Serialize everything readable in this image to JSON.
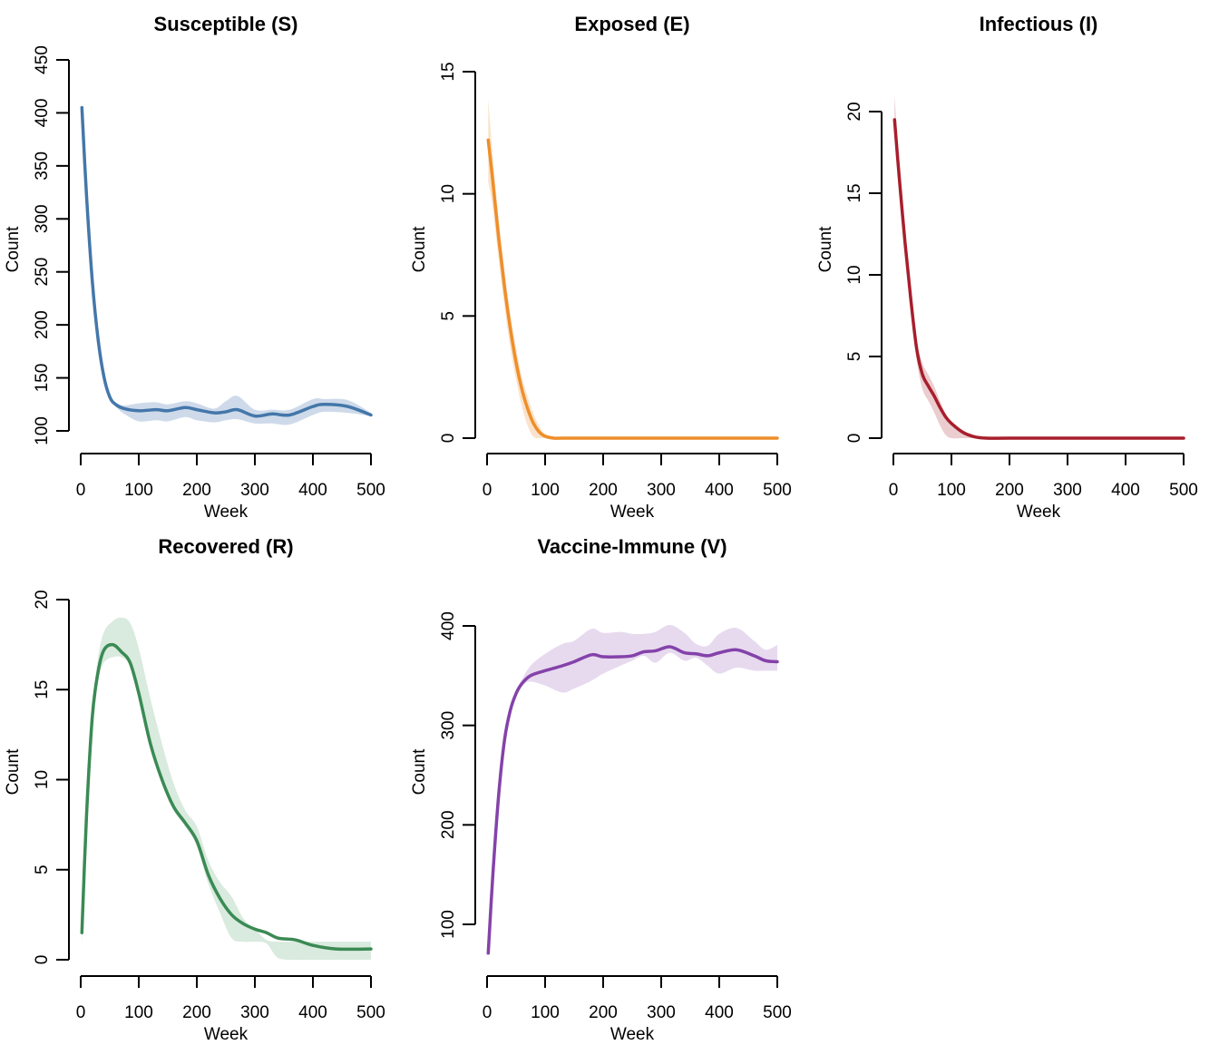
{
  "chart_data": [
    {
      "type": "line",
      "title": "Susceptible (S)",
      "xlabel": "Week",
      "ylabel": "Count",
      "xlim": [
        0,
        500
      ],
      "ylim": [
        100,
        450
      ],
      "xticks": [
        0,
        100,
        200,
        300,
        400,
        500
      ],
      "yticks": [
        100,
        150,
        200,
        250,
        300,
        350,
        400,
        450
      ],
      "grid": false,
      "color": "#4477AA",
      "band_color": "#C5D4E6",
      "series": [
        {
          "name": "S mean",
          "x": [
            2,
            10,
            20,
            30,
            40,
            50,
            60,
            75,
            100,
            130,
            150,
            180,
            200,
            230,
            250,
            270,
            300,
            330,
            360,
            400,
            420,
            460,
            500
          ],
          "y": [
            405,
            322,
            241,
            186,
            151,
            132,
            125,
            121,
            119,
            120,
            119,
            122,
            120,
            117,
            118,
            120,
            114,
            116,
            115,
            123,
            125,
            123,
            115
          ],
          "lower": [
            405,
            322,
            241,
            186,
            151,
            131,
            123,
            116,
            109,
            110,
            109,
            113,
            110,
            108,
            110,
            111,
            107,
            107,
            106,
            115,
            118,
            117,
            114
          ],
          "upper": [
            405,
            322,
            241,
            186,
            151,
            133,
            127,
            124,
            126,
            127,
            125,
            128,
            126,
            121,
            128,
            133,
            120,
            120,
            120,
            130,
            130,
            129,
            117
          ]
        }
      ]
    },
    {
      "type": "line",
      "title": "Exposed (E)",
      "xlabel": "Week",
      "ylabel": "Count",
      "xlim": [
        0,
        500
      ],
      "ylim": [
        0,
        15
      ],
      "xticks": [
        0,
        100,
        200,
        300,
        400,
        500
      ],
      "yticks": [
        0,
        5,
        10,
        15
      ],
      "grid": false,
      "color": "#EE8E2A",
      "band_color": "#F9DEC3",
      "series": [
        {
          "name": "E mean",
          "x": [
            2,
            10,
            20,
            30,
            40,
            50,
            60,
            70,
            80,
            90,
            100,
            115,
            130,
            200,
            300,
            400,
            500
          ],
          "y": [
            12.2,
            10.5,
            8.2,
            6.2,
            4.5,
            3.1,
            2.0,
            1.2,
            0.6,
            0.25,
            0.08,
            0,
            0,
            0,
            0,
            0,
            0
          ],
          "lower": [
            10.5,
            9.4,
            7.3,
            5.4,
            3.7,
            2.4,
            1.3,
            0.5,
            0.05,
            0,
            0,
            0,
            0,
            0,
            0,
            0,
            0
          ],
          "upper": [
            13.9,
            11.5,
            9.0,
            6.9,
            5.1,
            3.7,
            2.5,
            1.7,
            1.0,
            0.5,
            0.15,
            0,
            0,
            0,
            0,
            0,
            0
          ]
        }
      ]
    },
    {
      "type": "line",
      "title": "Infectious (I)",
      "xlabel": "Week",
      "ylabel": "Count",
      "xlim": [
        0,
        500
      ],
      "ylim": [
        0,
        20
      ],
      "xticks": [
        0,
        100,
        200,
        300,
        400,
        500
      ],
      "yticks": [
        0,
        5,
        10,
        15,
        20
      ],
      "grid": false,
      "color": "#A81E2C",
      "band_color": "#E8C4C8",
      "series": [
        {
          "name": "I mean",
          "x": [
            2,
            10,
            20,
            30,
            40,
            50,
            60,
            70,
            80,
            90,
            100,
            120,
            140,
            160,
            200,
            300,
            400,
            500
          ],
          "y": [
            19.5,
            16,
            12,
            8.5,
            5.5,
            3.9,
            3.2,
            2.6,
            1.9,
            1.3,
            0.9,
            0.35,
            0.08,
            0,
            0,
            0,
            0,
            0
          ],
          "lower": [
            18.5,
            15.2,
            11.5,
            8.0,
            4.8,
            3.0,
            2.3,
            1.6,
            0.8,
            0.2,
            0,
            0,
            0,
            0,
            0,
            0,
            0,
            0
          ],
          "upper": [
            21.0,
            16.8,
            12.6,
            9.0,
            6.0,
            4.6,
            3.9,
            3.2,
            2.3,
            1.5,
            1.0,
            0.4,
            0.1,
            0,
            0,
            0,
            0,
            0
          ]
        }
      ]
    },
    {
      "type": "line",
      "title": "Recovered (R)",
      "xlabel": "Week",
      "ylabel": "Count",
      "xlim": [
        0,
        500
      ],
      "ylim": [
        0,
        20
      ],
      "xticks": [
        0,
        100,
        200,
        300,
        400,
        500
      ],
      "yticks": [
        0,
        5,
        10,
        15,
        20
      ],
      "grid": false,
      "color": "#3A8A54",
      "band_color": "#D2E6D8",
      "series": [
        {
          "name": "R mean",
          "x": [
            2,
            10,
            20,
            30,
            40,
            55,
            70,
            85,
            100,
            120,
            140,
            160,
            180,
            200,
            220,
            240,
            260,
            280,
            300,
            320,
            340,
            370,
            400,
            440,
            500
          ],
          "y": [
            1.5,
            8,
            13.5,
            16,
            17.2,
            17.5,
            17.1,
            16.5,
            14.8,
            12,
            10,
            8.5,
            7.6,
            6.6,
            4.7,
            3.4,
            2.5,
            2.0,
            1.7,
            1.5,
            1.2,
            1.1,
            0.8,
            0.6,
            0.6
          ],
          "lower": [
            0.8,
            7.5,
            13.0,
            15.5,
            16.5,
            16.8,
            16.8,
            16.3,
            14.6,
            11.8,
            9.8,
            8.3,
            7.4,
            6.3,
            4.2,
            2.6,
            1.2,
            1.0,
            1.0,
            0.9,
            0.1,
            0,
            0,
            0,
            0
          ],
          "upper": [
            2.0,
            8.5,
            14.0,
            16.8,
            18.2,
            18.8,
            19.0,
            18.7,
            17.3,
            14.5,
            12,
            9.8,
            8.3,
            7.4,
            5.5,
            4.3,
            3.5,
            2.3,
            1.7,
            1.1,
            1.0,
            1.0,
            1.0,
            1.0,
            1.0
          ]
        }
      ]
    },
    {
      "type": "line",
      "title": "Vaccine-Immune (V)",
      "xlabel": "Week",
      "ylabel": "Count",
      "xlim": [
        0,
        500
      ],
      "ylim": [
        50,
        400
      ],
      "xticks": [
        0,
        100,
        200,
        300,
        400,
        500
      ],
      "yticks": [
        100,
        200,
        300,
        400
      ],
      "grid": false,
      "color": "#8442AA",
      "band_color": "#E3D4EC",
      "series": [
        {
          "name": "V mean",
          "x": [
            2,
            10,
            20,
            30,
            40,
            50,
            60,
            75,
            100,
            130,
            150,
            180,
            200,
            230,
            250,
            270,
            290,
            315,
            340,
            360,
            380,
            400,
            430,
            460,
            480,
            500
          ],
          "y": [
            71,
            150,
            230,
            285,
            315,
            332,
            342,
            350,
            355,
            360,
            364,
            371,
            369,
            369,
            370,
            374,
            375,
            379,
            373,
            372,
            370,
            373,
            376,
            370,
            365,
            364
          ],
          "lower": [
            71,
            150,
            230,
            285,
            315,
            332,
            340,
            344,
            340,
            333,
            337,
            345,
            352,
            360,
            365,
            370,
            363,
            373,
            365,
            368,
            360,
            352,
            358,
            355,
            355,
            355
          ],
          "upper": [
            71,
            150,
            230,
            285,
            315,
            334,
            346,
            360,
            372,
            382,
            385,
            397,
            393,
            394,
            392,
            392,
            394,
            401,
            393,
            382,
            380,
            392,
            398,
            385,
            376,
            381
          ]
        }
      ]
    }
  ]
}
